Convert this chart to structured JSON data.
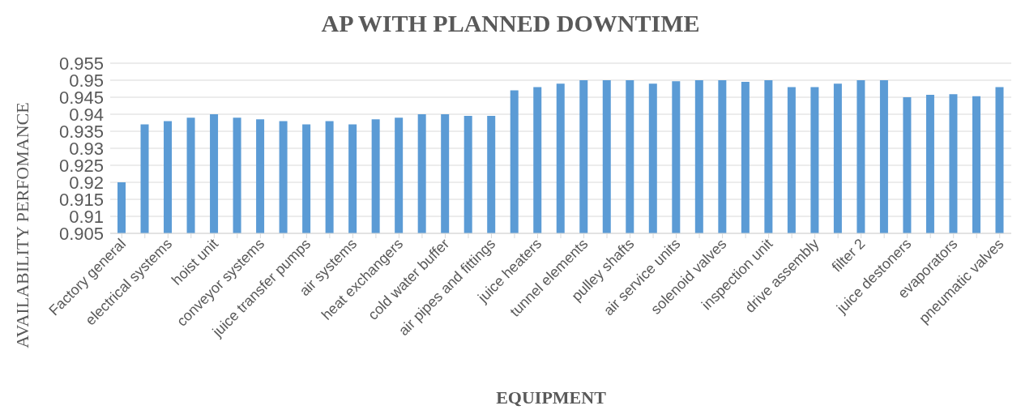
{
  "chart_data": {
    "type": "bar",
    "title": "AP WITH PLANNED DOWNTIME",
    "xlabel": "EQUIPMENT",
    "ylabel": "AVAILABILITY PERFOMANCE",
    "categories": [
      "Factory general",
      null,
      "electrical systems",
      null,
      "hoist unit",
      null,
      "conveyor systems",
      null,
      "juice transfer pumps",
      null,
      "air systems",
      null,
      "heat exchangers",
      null,
      "cold water buffer",
      null,
      "air pipes and fittings",
      null,
      "juice heaters",
      null,
      "tunnel elements",
      null,
      "pulley shafts",
      null,
      "air service units",
      null,
      "solenoid valves",
      null,
      "inspection unit",
      null,
      "drive assembly",
      null,
      "filter 2",
      null,
      "juice destoners",
      null,
      "evaporators",
      null,
      "pneumatic valves"
    ],
    "values": [
      0.92,
      0.937,
      0.938,
      0.939,
      0.94,
      0.939,
      0.9385,
      0.938,
      0.937,
      0.938,
      0.937,
      0.9385,
      0.939,
      0.94,
      0.94,
      0.9395,
      0.9395,
      0.947,
      0.948,
      0.949,
      0.95,
      0.95,
      0.95,
      0.949,
      0.9497,
      0.95,
      0.95,
      0.9495,
      0.95,
      0.948,
      0.948,
      0.949,
      0.95,
      0.95,
      0.945,
      0.9457,
      0.9459,
      0.9453,
      0.948
    ],
    "color": "#5b9bd5",
    "ylim": [
      0.905,
      0.955
    ],
    "yticks": [
      0.905,
      0.91,
      0.915,
      0.92,
      0.925,
      0.93,
      0.935,
      0.94,
      0.945,
      0.95,
      0.955
    ],
    "grid": "y",
    "legend": false
  }
}
